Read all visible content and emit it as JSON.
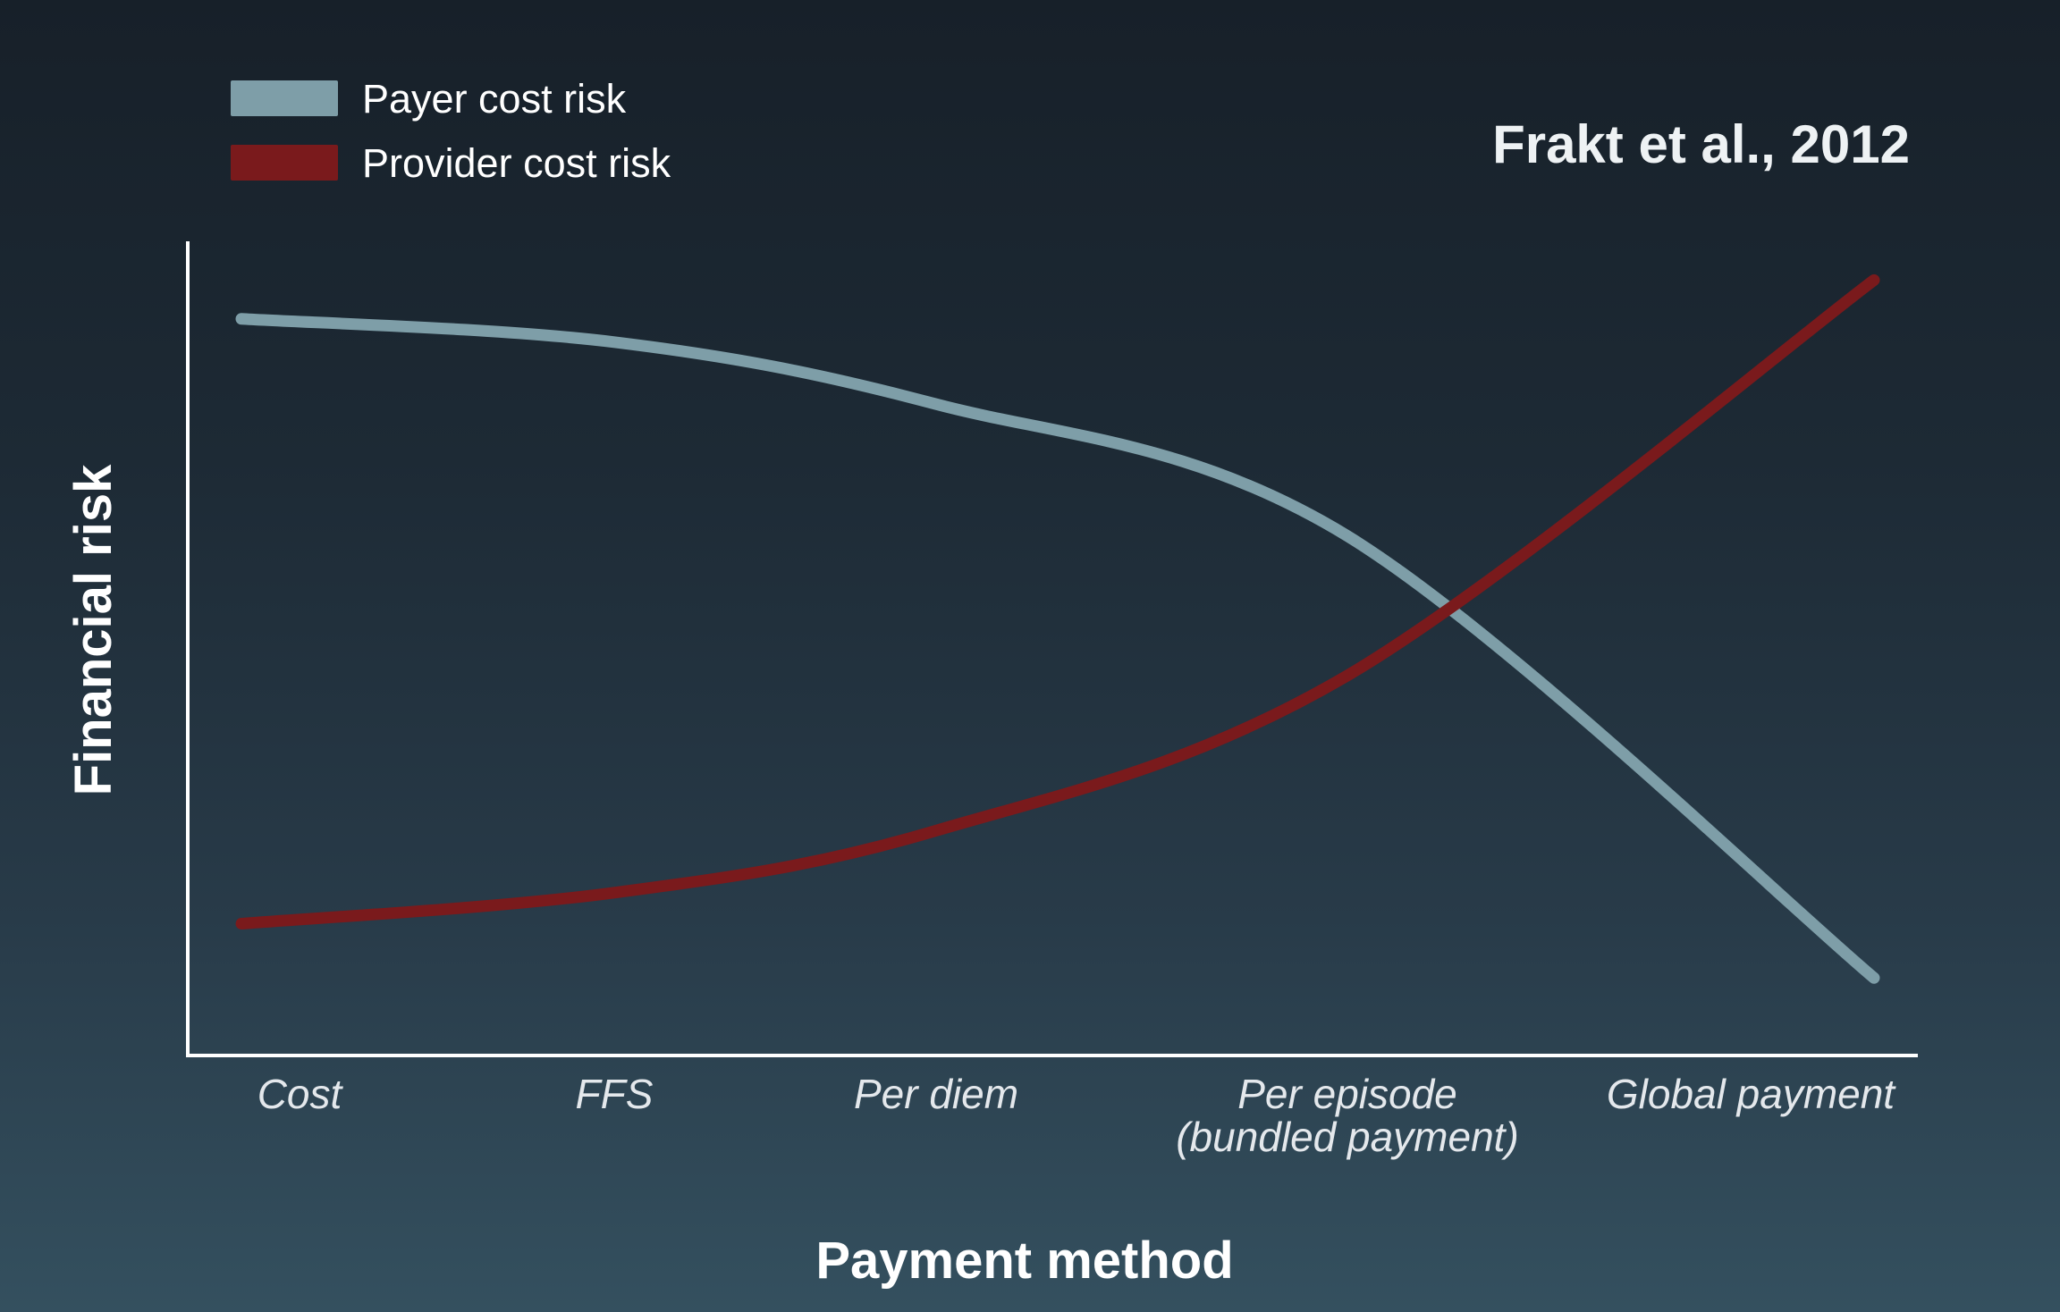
{
  "chart_data": {
    "type": "line",
    "categories": [
      "Cost",
      "FFS",
      "Per diem",
      "Per episode|(bundled payment)",
      "Global payment"
    ],
    "series": [
      {
        "name": "Payer cost risk",
        "color": "#7e9ea8",
        "values": [
          9.5,
          9.2,
          8.4,
          6.7,
          1.0
        ]
      },
      {
        "name": "Provider cost risk",
        "color": "#7a1a1c",
        "values": [
          1.7,
          2.1,
          2.9,
          4.9,
          10.0
        ]
      }
    ],
    "xlabel": "Payment method",
    "ylabel": "Financial risk",
    "annotation": "Frakt et al., 2012",
    "ylim": [
      0,
      10.5
    ],
    "grid": false,
    "legend_position": "top-left"
  }
}
